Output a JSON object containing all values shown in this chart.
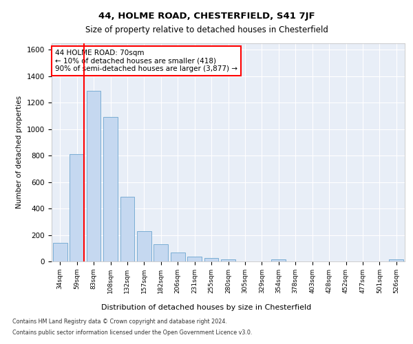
{
  "title1": "44, HOLME ROAD, CHESTERFIELD, S41 7JF",
  "title2": "Size of property relative to detached houses in Chesterfield",
  "xlabel": "Distribution of detached houses by size in Chesterfield",
  "ylabel": "Number of detached properties",
  "categories": [
    "34sqm",
    "59sqm",
    "83sqm",
    "108sqm",
    "132sqm",
    "157sqm",
    "182sqm",
    "206sqm",
    "231sqm",
    "255sqm",
    "280sqm",
    "305sqm",
    "329sqm",
    "354sqm",
    "378sqm",
    "403sqm",
    "428sqm",
    "452sqm",
    "477sqm",
    "501sqm",
    "526sqm"
  ],
  "values": [
    140,
    810,
    1290,
    1090,
    490,
    230,
    130,
    65,
    38,
    27,
    14,
    0,
    0,
    14,
    0,
    0,
    0,
    0,
    0,
    0,
    14
  ],
  "bar_color": "#c5d8f0",
  "bar_edge_color": "#7aadd4",
  "vline_color": "red",
  "annotation_text": "44 HOLME ROAD: 70sqm\n← 10% of detached houses are smaller (418)\n90% of semi-detached houses are larger (3,877) →",
  "annotation_box_color": "white",
  "annotation_box_edge": "red",
  "ylim": [
    0,
    1650
  ],
  "yticks": [
    0,
    200,
    400,
    600,
    800,
    1000,
    1200,
    1400,
    1600
  ],
  "footer1": "Contains HM Land Registry data © Crown copyright and database right 2024.",
  "footer2": "Contains public sector information licensed under the Open Government Licence v3.0.",
  "fig_bg_color": "#ffffff",
  "plot_bg_color": "#e8eef7"
}
